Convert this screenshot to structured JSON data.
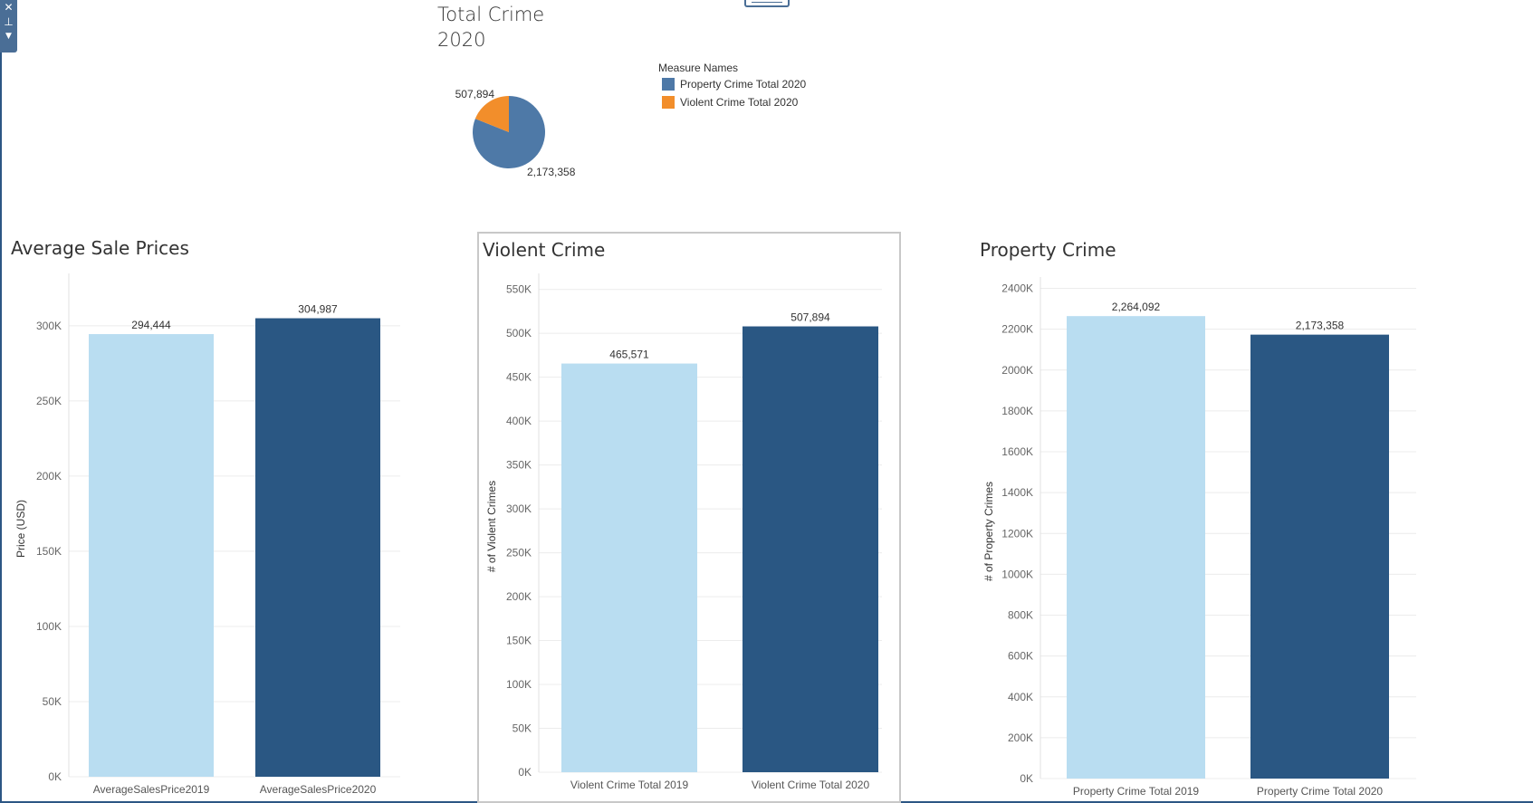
{
  "toolbar": {
    "close_icon": "close-icon",
    "pin_icon": "pin-icon",
    "menu_icon": "chevron-down-icon"
  },
  "pie": {
    "title_line1": "Total Crime",
    "title_line2": "2020",
    "legend_title": "Measure Names",
    "legend": [
      {
        "label": "Property Crime Total 2020",
        "color": "#4e79a7"
      },
      {
        "label": "Violent Crime Total 2020",
        "color": "#f28e2b"
      }
    ]
  },
  "chart_data": [
    {
      "type": "pie",
      "title": "Total Crime 2020",
      "slices": [
        {
          "label": "Property Crime Total 2020",
          "value": 2173358,
          "value_label": "2,173,358",
          "color": "#4e79a7"
        },
        {
          "label": "Violent Crime Total 2020",
          "value": 507894,
          "value_label": "507,894",
          "color": "#f28e2b"
        }
      ]
    },
    {
      "type": "bar",
      "title": "Average Sale Prices",
      "ylabel": "Price (USD)",
      "categories": [
        "AverageSalesPrice2019",
        "AverageSalesPrice2020"
      ],
      "values": [
        294444,
        304987
      ],
      "value_labels": [
        "294,444",
        "304,987"
      ],
      "colors": [
        "#b9ddf1",
        "#2a5783"
      ],
      "ylim": [
        0,
        330000
      ],
      "ticks": [
        0,
        50000,
        100000,
        150000,
        200000,
        250000,
        300000
      ],
      "tick_labels": [
        "0K",
        "50K",
        "100K",
        "150K",
        "200K",
        "250K",
        "300K"
      ],
      "grid": true
    },
    {
      "type": "bar",
      "title": "Violent Crime",
      "ylabel": "# of Violent Crimes",
      "categories": [
        "Violent Crime Total 2019",
        "Violent Crime Total 2020"
      ],
      "values": [
        465571,
        507894
      ],
      "value_labels": [
        "465,571",
        "507,894"
      ],
      "colors": [
        "#b9ddf1",
        "#2a5783"
      ],
      "ylim": [
        0,
        560000
      ],
      "ticks": [
        0,
        50000,
        100000,
        150000,
        200000,
        250000,
        300000,
        350000,
        400000,
        450000,
        500000,
        550000
      ],
      "tick_labels": [
        "0K",
        "50K",
        "100K",
        "150K",
        "200K",
        "250K",
        "300K",
        "350K",
        "400K",
        "450K",
        "500K",
        "550K"
      ],
      "grid": true
    },
    {
      "type": "bar",
      "title": "Property Crime",
      "ylabel": "# of Property Crimes",
      "categories": [
        "Property Crime Total 2019",
        "Property Crime Total 2020"
      ],
      "values": [
        2264092,
        2173358
      ],
      "value_labels": [
        "2,264,092",
        "2,173,358"
      ],
      "colors": [
        "#b9ddf1",
        "#2a5783"
      ],
      "ylim": [
        0,
        2420000
      ],
      "ticks": [
        0,
        200000,
        400000,
        600000,
        800000,
        1000000,
        1200000,
        1400000,
        1600000,
        1800000,
        2000000,
        2200000,
        2400000
      ],
      "tick_labels": [
        "0K",
        "200K",
        "400K",
        "600K",
        "800K",
        "1000K",
        "1200K",
        "1400K",
        "1600K",
        "1800K",
        "2000K",
        "2200K",
        "2400K"
      ],
      "grid": true
    }
  ]
}
